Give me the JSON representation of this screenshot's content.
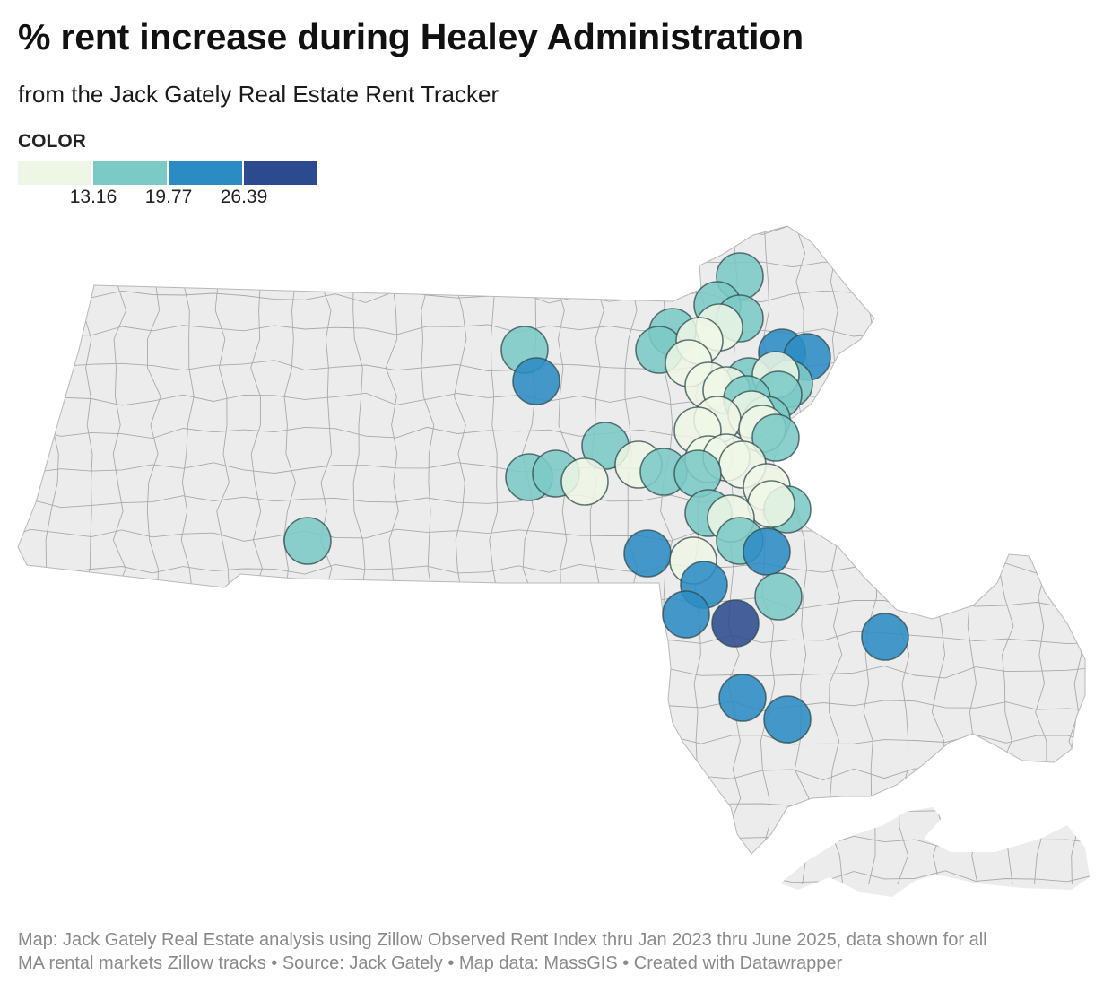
{
  "header": {
    "title": "% rent increase during Healey Administration",
    "subtitle": "from the Jack Gately Real Estate Rent Tracker"
  },
  "legend": {
    "title": "COLOR",
    "bins": [
      {
        "color": "#eef7e6"
      },
      {
        "color": "#7ccac6"
      },
      {
        "color": "#2b8cc4"
      },
      {
        "color": "#2c4b8e"
      }
    ],
    "breaks": [
      "13.16",
      "19.77",
      "26.39"
    ]
  },
  "map_data": {
    "region": "Massachusetts",
    "subdivisions": "towns",
    "value_label": "% rent increase",
    "markers_by_bin": [
      {
        "bin": "below 13.16",
        "count": 21
      },
      {
        "bin": "13.16 to 19.77",
        "count": 26
      },
      {
        "bin": "19.77 to 26.39",
        "count": 11
      },
      {
        "bin": "above 26.39",
        "count": 1
      }
    ]
  },
  "footer": {
    "line1": "Map: Jack Gately Real Estate analysis using Zillow Observed Rent Index thru Jan 2023 thru June 2025, data shown for all",
    "line2": "MA rental markets Zillow tracks • Source: Jack Gately • Map data: MassGIS • Created with Datawrapper"
  }
}
